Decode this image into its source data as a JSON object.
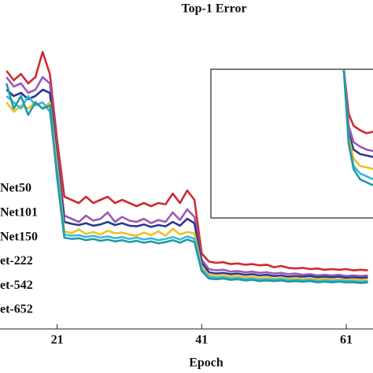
{
  "chart_data": [
    {
      "type": "line",
      "title": "Top-1 Error",
      "xlabel": "Epoch",
      "x": [
        14,
        15,
        16,
        17,
        18,
        19,
        20,
        21,
        22,
        23,
        24,
        25,
        26,
        27,
        28,
        29,
        30,
        31,
        32,
        33,
        34,
        35,
        36,
        37,
        38,
        39,
        40,
        41,
        42,
        43,
        44,
        45,
        46,
        47,
        48,
        49,
        50,
        51,
        52,
        53,
        54,
        55,
        56,
        57,
        58,
        59,
        60,
        61,
        62,
        63,
        64
      ],
      "xlim": [
        13.1,
        64.7
      ],
      "xticks": [
        21,
        41,
        61
      ],
      "ylim": [
        10,
        60
      ],
      "series": [
        {
          "name": "Net50",
          "color": "#d02a2f",
          "values": [
            51,
            49.5,
            50.5,
            49,
            50,
            54,
            50.5,
            40,
            31,
            30.5,
            30,
            31,
            30,
            30.5,
            31,
            30,
            30.5,
            30,
            29.5,
            30,
            29.5,
            30,
            29.8,
            31.5,
            30,
            32,
            30.5,
            22,
            20.7,
            20.5,
            20.6,
            20.3,
            20.4,
            20.2,
            20.3,
            20.1,
            20.2,
            19.8,
            20,
            19.7,
            19.6,
            19.7,
            19.5,
            19.6,
            19.4,
            19.5,
            19.4,
            19.5,
            19.3,
            19.4,
            19.3
          ]
        },
        {
          "name": "Net101",
          "color": "#9b59b6",
          "values": [
            50,
            48.5,
            49,
            47.5,
            48,
            50,
            49,
            38,
            28,
            27.5,
            27,
            28,
            27.2,
            27.5,
            28.5,
            27,
            27.8,
            27.2,
            27,
            27.5,
            26.8,
            27.3,
            27,
            28.5,
            27.3,
            29,
            27.8,
            21,
            19.5,
            19.3,
            19.4,
            19.1,
            19.2,
            19,
            19.1,
            18.9,
            19,
            18.8,
            18.9,
            18.7,
            18.8,
            18.6,
            18.7,
            18.5,
            18.6,
            18.5,
            18.6,
            18.4,
            18.5,
            18.4,
            18.5
          ]
        },
        {
          "name": "Net150",
          "color": "#2b3a8c",
          "values": [
            48,
            47,
            47.5,
            46.5,
            47,
            48,
            47.5,
            37,
            27,
            26.7,
            26.5,
            26.8,
            26.4,
            26.6,
            27,
            26.5,
            26.8,
            26.4,
            26.3,
            26.6,
            26.2,
            26.5,
            26.3,
            27,
            26.4,
            27.5,
            26.8,
            20.5,
            19,
            18.8,
            18.9,
            18.7,
            18.8,
            18.6,
            18.7,
            18.5,
            18.6,
            18.4,
            18.5,
            18.3,
            18.4,
            18.3,
            18.4,
            18.2,
            18.3,
            18.2,
            18.3,
            18.1,
            18.2,
            18.1,
            18.2
          ]
        },
        {
          "name": "et-222",
          "color": "#f0c020",
          "values": [
            46,
            44.5,
            45.5,
            45,
            46,
            45,
            46,
            36,
            25.5,
            25.2,
            25.8,
            25.1,
            25.4,
            25,
            25.6,
            25.2,
            25.3,
            25,
            24.8,
            25.3,
            24.9,
            25.5,
            24.8,
            25.9,
            25,
            25.4,
            25.2,
            19.8,
            18.6,
            18.4,
            18.5,
            18.3,
            18.4,
            18.2,
            18.3,
            18.1,
            18.2,
            18,
            18.1,
            18,
            18.1,
            17.9,
            18,
            17.9,
            18,
            17.8,
            17.9,
            17.8,
            17.9,
            17.8,
            17.8
          ]
        },
        {
          "name": "et-542",
          "color": "#3cb8d8",
          "values": [
            47,
            46,
            45,
            47,
            45.5,
            46,
            44.5,
            35,
            25,
            24.8,
            24.9,
            24.6,
            24.8,
            24.5,
            24.7,
            24.4,
            24.6,
            24.3,
            24.5,
            24.2,
            24.4,
            24.1,
            24.3,
            24.6,
            24.2,
            24.7,
            24.3,
            19.5,
            18.3,
            18.1,
            18.2,
            18,
            18.1,
            17.9,
            18,
            17.8,
            17.9,
            17.8,
            17.9,
            17.7,
            17.8,
            17.7,
            17.8,
            17.6,
            17.7,
            17.6,
            17.7,
            17.6,
            17.6,
            17.5,
            17.6
          ]
        },
        {
          "name": "et-652",
          "color": "#1f9aa8",
          "values": [
            49,
            45,
            47,
            44,
            46,
            45,
            45.5,
            34,
            24.5,
            24.3,
            24.4,
            24.1,
            24.3,
            24,
            24.2,
            23.9,
            24.1,
            23.8,
            24,
            23.7,
            23.9,
            23.6,
            23.8,
            24.1,
            23.7,
            24.2,
            23.8,
            19.2,
            18,
            17.9,
            18,
            17.8,
            17.9,
            17.7,
            17.8,
            17.6,
            17.7,
            17.6,
            17.7,
            17.5,
            17.6,
            17.5,
            17.6,
            17.4,
            17.5,
            17.4,
            17.5,
            17.4,
            17.4,
            17.3,
            17.4
          ]
        }
      ]
    },
    {
      "type": "line",
      "x": [
        8.2,
        8.5,
        8.8,
        9.2,
        9.6,
        10
      ],
      "xlim": [
        0,
        10
      ],
      "ylim": [
        0,
        10
      ],
      "series": [
        {
          "color": "#d02a2f",
          "values": [
            10,
            7,
            6.2,
            5.9,
            5.7,
            5.8
          ]
        },
        {
          "color": "#9b59b6",
          "values": [
            10,
            6.2,
            5.1,
            4.8,
            4.6,
            4.5
          ]
        },
        {
          "color": "#2b3a8c",
          "values": [
            10,
            5.7,
            4.6,
            4.3,
            4.2,
            4.1
          ]
        },
        {
          "color": "#f0c020",
          "values": [
            10,
            5.4,
            4.0,
            3.5,
            3.4,
            3.3
          ]
        },
        {
          "color": "#3cb8d8",
          "values": [
            10,
            5.1,
            3.5,
            3.0,
            2.8,
            2.6
          ]
        },
        {
          "color": "#1f9aa8",
          "values": [
            10,
            5,
            3.3,
            2.6,
            2.4,
            2.2
          ]
        }
      ]
    }
  ]
}
